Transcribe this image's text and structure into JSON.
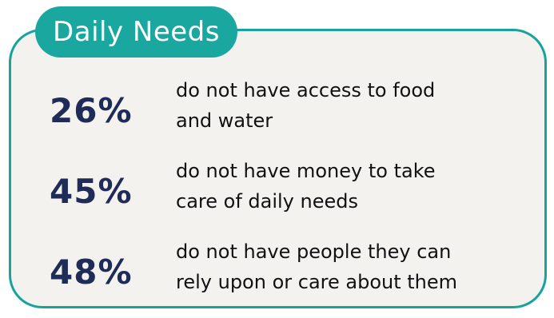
{
  "card": {
    "title": "Daily Needs",
    "accent_color": "#17a29b",
    "background_color": "#f4f2ef",
    "stat_color": "#1f2c57"
  },
  "stats": [
    {
      "value": "26%",
      "line1": "do not have access to food",
      "line2": "and water"
    },
    {
      "value": "45%",
      "line1": "do not have money to take",
      "line2": "care of daily needs"
    },
    {
      "value": "48%",
      "line1": "do not have people they can",
      "line2": "rely upon or care about them"
    }
  ]
}
